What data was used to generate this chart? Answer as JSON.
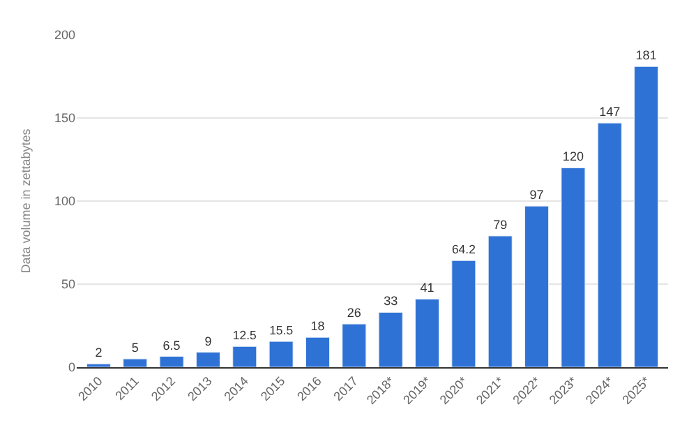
{
  "chart_data": {
    "type": "bar",
    "ylabel": "Data volume in zettabytes",
    "categories": [
      "2010",
      "2011",
      "2012",
      "2013",
      "2014",
      "2015",
      "2016",
      "2017",
      "2018*",
      "2019*",
      "2020*",
      "2021*",
      "2022*",
      "2023*",
      "2024*",
      "2025*"
    ],
    "values": [
      2,
      5,
      6.5,
      9,
      12.5,
      15.5,
      18,
      26,
      33,
      41,
      64.2,
      79,
      97,
      120,
      147,
      181
    ],
    "color": "#2f72d6",
    "ylim": [
      0,
      200
    ],
    "yticks": [
      0,
      50,
      100,
      150,
      200
    ],
    "grid": "y",
    "data_labels": true
  }
}
